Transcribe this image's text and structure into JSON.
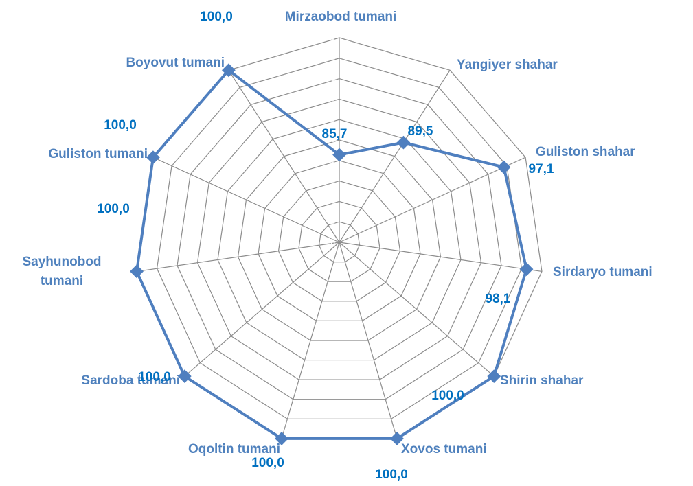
{
  "chart_data": {
    "type": "radar",
    "categories": [
      "Mirzaobod tumani",
      "Yangiyer shahar",
      "Guliston shahar",
      "Sirdaryo tumani",
      "Shirin shahar",
      "Xovos tumani",
      "Oqoltin tumani",
      "Sardoba tumani",
      "Sayhunobod tumani",
      "Guliston tumani",
      "Boyovut tumani"
    ],
    "series": [
      {
        "color": "#4f7fbf",
        "values": [
          85.7,
          89.5,
          97.1,
          98.1,
          100,
          100,
          100,
          100,
          100,
          100,
          100
        ],
        "value_labels": [
          "85,7",
          "89,5",
          "97,1",
          "98,1",
          "100,0",
          "100,0",
          "100,0",
          "100,0",
          "100,0",
          "100,0",
          "100,0"
        ]
      }
    ],
    "ylim": [
      75,
      100
    ],
    "yticks": [
      75,
      77.5,
      80,
      82.5,
      85,
      87.5,
      90,
      92.5,
      95,
      97.5,
      100
    ],
    "grid": true
  }
}
